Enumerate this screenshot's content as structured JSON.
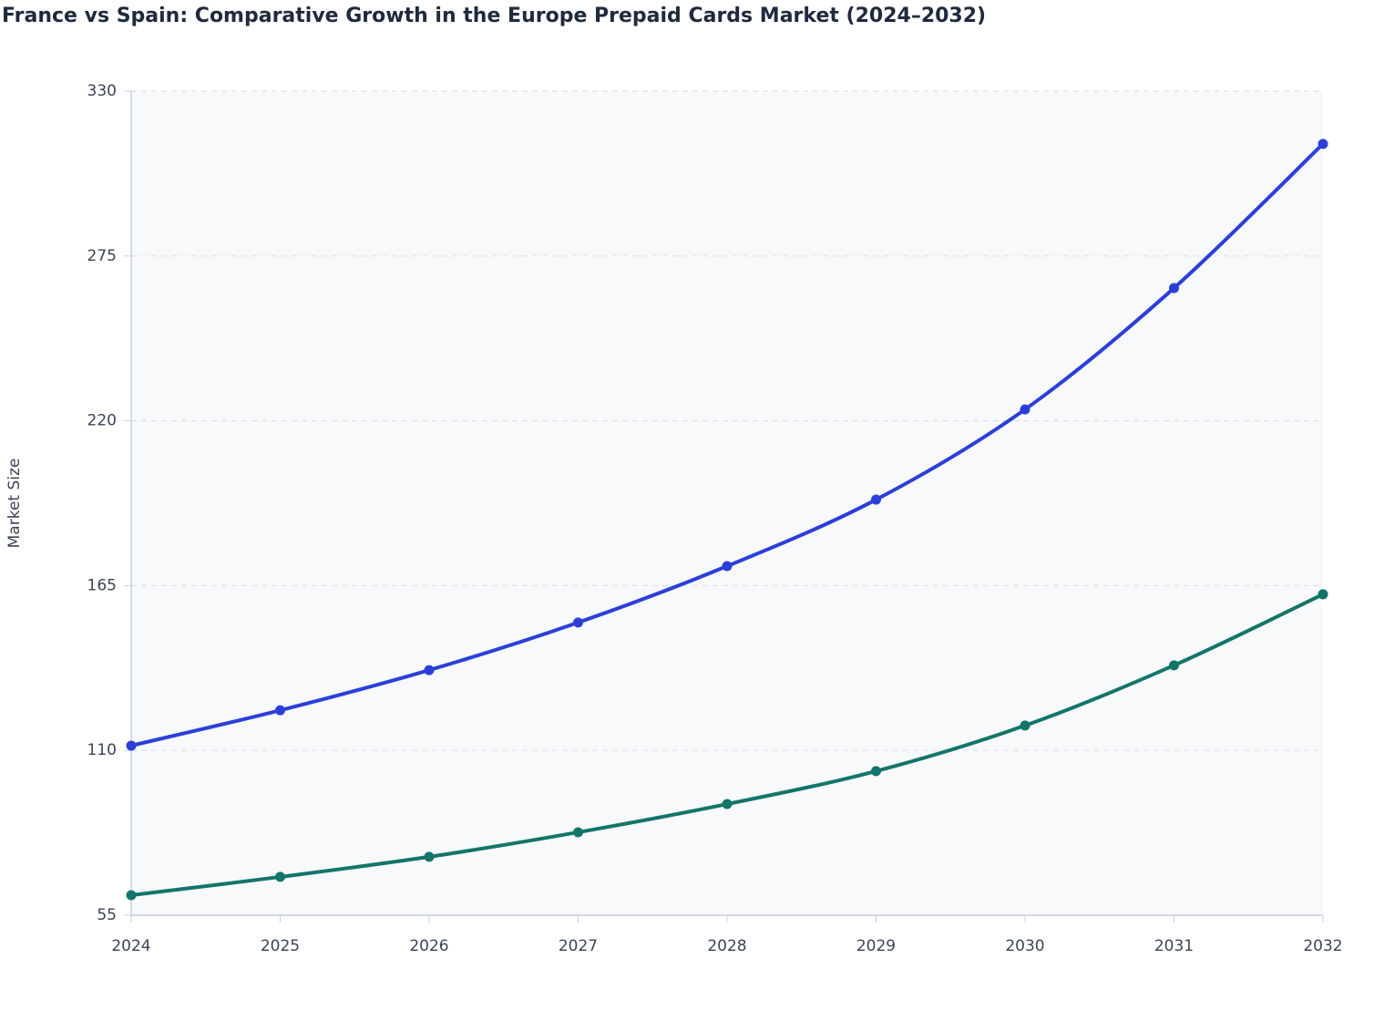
{
  "chart_data": {
    "type": "line",
    "title": "France vs Spain: Comparative Growth in the Europe Prepaid Cards Market (2024–2032)",
    "y_label": "Market Size",
    "categories": [
      "2024",
      "2025",
      "2026",
      "2027",
      "2028",
      "2029",
      "2030",
      "2031",
      "2032"
    ],
    "series": [
      {
        "color": "#2b3fd8",
        "values": [
          111.6,
          123.4,
          136.8,
          152.7,
          171.5,
          193.7,
          223.8,
          264.3,
          312.4
        ]
      },
      {
        "color": "#13756a",
        "values": [
          61.7,
          67.8,
          74.5,
          82.7,
          92.1,
          103.1,
          118.3,
          138.4,
          162.1
        ]
      }
    ],
    "ylim": [
      55,
      330
    ],
    "yticks": [
      55,
      110,
      165,
      220,
      275,
      330
    ],
    "grid": true
  }
}
